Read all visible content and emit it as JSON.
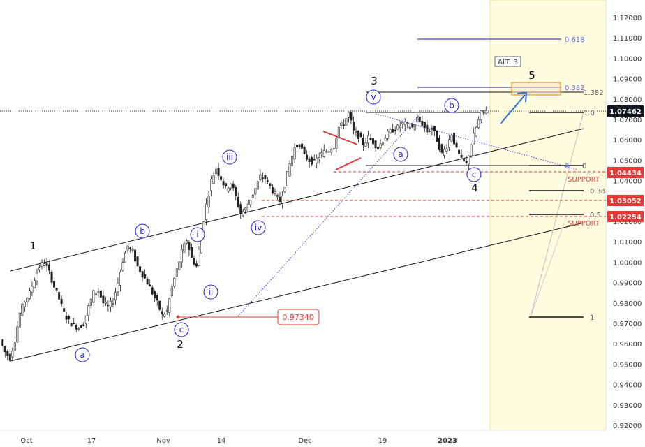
{
  "chart_data": {
    "type": "candlestick",
    "instrument_price_axis": {
      "ticks": [
        "1.12000",
        "1.11000",
        "1.10000",
        "1.09000",
        "1.08000",
        "1.07000",
        "1.06000",
        "1.05000",
        "1.04000",
        "1.03000",
        "1.02000",
        "1.01000",
        "1.00000",
        "0.99000",
        "0.98000",
        "0.97000",
        "0.96000",
        "0.95000",
        "0.94000",
        "0.93000",
        "0.92000"
      ],
      "ylim": [
        0.9195,
        1.1245
      ]
    },
    "x_ticks": [
      "Oct",
      "17",
      "Nov",
      "14",
      "Dec",
      "19",
      "2023"
    ],
    "price_tags": {
      "current": "1.07462",
      "level_a": "1.04434",
      "level_b": "1.03052",
      "level_c": "1.02254"
    },
    "annotations": {
      "marker_price": "0.97340",
      "alt": "ALT: 3",
      "support_1": "SUPPORT",
      "support_2": "SUPPORT"
    },
    "wave_labels_primary": [
      "1",
      "2",
      "3",
      "4",
      "5"
    ],
    "wave_labels_minor": [
      "a",
      "b",
      "c",
      "i",
      "ii",
      "iii",
      "iv",
      "v",
      "a",
      "b",
      "c"
    ],
    "fib_levels": {
      "f0618": "0.618",
      "f0382": "0.382",
      "f1382": "1.382",
      "f10": "1.0",
      "f0a": "0",
      "f0b": "0",
      "f038": "0.38",
      "f05": "0.5",
      "f1": "1"
    },
    "price_series": [
      [
        0,
        0.962
      ],
      [
        2,
        0.956
      ],
      [
        4,
        0.953
      ],
      [
        6,
        0.962
      ],
      [
        8,
        0.975
      ],
      [
        10,
        0.981
      ],
      [
        12,
        0.985
      ],
      [
        14,
        0.992
      ],
      [
        16,
        0.998
      ],
      [
        18,
        1.0
      ],
      [
        20,
        0.995
      ],
      [
        22,
        0.988
      ],
      [
        24,
        0.982
      ],
      [
        26,
        0.975
      ],
      [
        28,
        0.971
      ],
      [
        30,
        0.969
      ],
      [
        32,
        0.968
      ],
      [
        34,
        0.97
      ],
      [
        36,
        0.978
      ],
      [
        38,
        0.985
      ],
      [
        40,
        0.986
      ],
      [
        42,
        0.98
      ],
      [
        44,
        0.978
      ],
      [
        46,
        0.981
      ],
      [
        48,
        0.99
      ],
      [
        50,
        1.001
      ],
      [
        52,
        1.008
      ],
      [
        54,
        1.005
      ],
      [
        56,
        0.998
      ],
      [
        58,
        0.994
      ],
      [
        60,
        0.99
      ],
      [
        62,
        0.985
      ],
      [
        64,
        0.98
      ],
      [
        66,
        0.974
      ],
      [
        68,
        0.976
      ],
      [
        70,
        0.988
      ],
      [
        72,
        0.996
      ],
      [
        74,
        1.005
      ],
      [
        76,
        1.011
      ],
      [
        78,
        1.002
      ],
      [
        80,
        0.998
      ],
      [
        82,
        1.014
      ],
      [
        84,
        1.028
      ],
      [
        86,
        1.04
      ],
      [
        88,
        1.046
      ],
      [
        90,
        1.041
      ],
      [
        92,
        1.036
      ],
      [
        94,
        1.039
      ],
      [
        96,
        1.032
      ],
      [
        98,
        1.024
      ],
      [
        100,
        1.026
      ],
      [
        102,
        1.031
      ],
      [
        104,
        1.036
      ],
      [
        106,
        1.042
      ],
      [
        108,
        1.041
      ],
      [
        110,
        1.037
      ],
      [
        112,
        1.033
      ],
      [
        114,
        1.03
      ],
      [
        116,
        1.038
      ],
      [
        118,
        1.048
      ],
      [
        120,
        1.056
      ],
      [
        122,
        1.058
      ],
      [
        124,
        1.052
      ],
      [
        126,
        1.05
      ],
      [
        128,
        1.049
      ],
      [
        130,
        1.052
      ],
      [
        132,
        1.054
      ],
      [
        134,
        1.055
      ],
      [
        136,
        1.057
      ],
      [
        138,
        1.066
      ],
      [
        140,
        1.068
      ],
      [
        142,
        1.073
      ],
      [
        144,
        1.064
      ],
      [
        146,
        1.062
      ],
      [
        148,
        1.058
      ],
      [
        150,
        1.061
      ],
      [
        152,
        1.059
      ],
      [
        154,
        1.056
      ],
      [
        156,
        1.06
      ],
      [
        158,
        1.063
      ],
      [
        160,
        1.065
      ],
      [
        162,
        1.066
      ],
      [
        164,
        1.068
      ],
      [
        166,
        1.067
      ],
      [
        168,
        1.066
      ],
      [
        170,
        1.07
      ],
      [
        172,
        1.068
      ],
      [
        174,
        1.064
      ],
      [
        176,
        1.066
      ],
      [
        178,
        1.06
      ],
      [
        180,
        1.053
      ],
      [
        182,
        1.057
      ],
      [
        184,
        1.063
      ],
      [
        186,
        1.055
      ],
      [
        188,
        1.05
      ],
      [
        190,
        1.048
      ],
      [
        192,
        1.058
      ],
      [
        194,
        1.066
      ],
      [
        196,
        1.073
      ],
      [
        198,
        1.075
      ]
    ]
  }
}
